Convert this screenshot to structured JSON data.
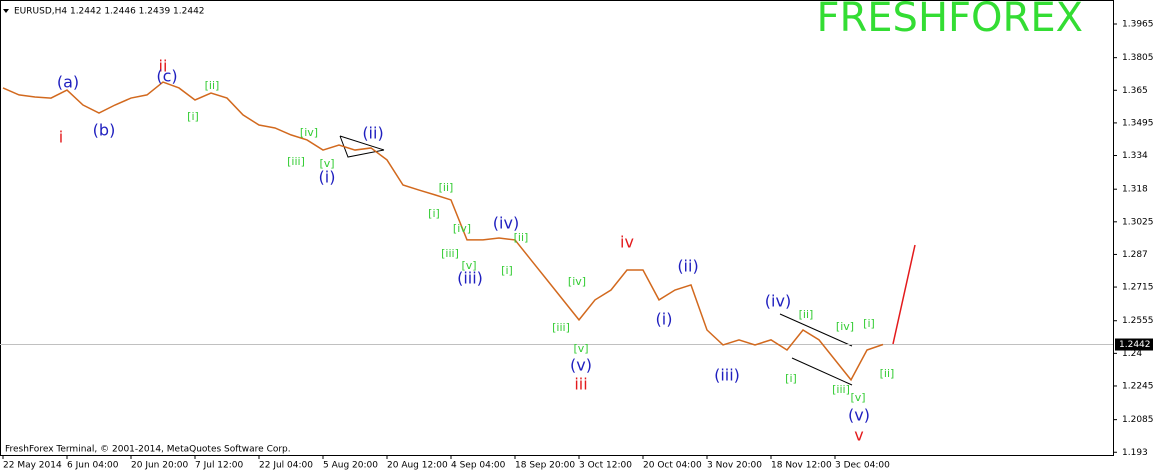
{
  "chart_data": {
    "type": "line",
    "title": "EURUSD,H4  1.2442 1.2446 1.2439 1.2442",
    "watermark": "FRESHFOREX",
    "footer": "FreshForex Terminal, © 2001-2014, MetaQuotes Software Corp.",
    "categories": [
      "22 May 2014",
      null,
      null,
      null,
      "6 Jun 04:00",
      null,
      null,
      null,
      "20 Jun 20:00",
      null,
      null,
      null,
      "7 Jul 12:00",
      null,
      null,
      null,
      "22 Jul 04:00",
      null,
      null,
      null,
      "5 Aug 20:00",
      null,
      null,
      null,
      "20 Aug 12:00",
      null,
      null,
      null,
      "4 Sep 04:00",
      null,
      null,
      null,
      "18 Sep 20:00",
      null,
      null,
      null,
      "3 Oct 12:00",
      null,
      null,
      null,
      "20 Oct 04:00",
      null,
      null,
      null,
      "3 Nov 20:00",
      null,
      null,
      null,
      "18 Nov 12:00",
      null,
      null,
      null,
      "3 Dec 04:00",
      null,
      null,
      null
    ],
    "series": [
      {
        "name": "EURUSD",
        "color": "#d2691e",
        "values": [
          1.3661,
          1.3628,
          1.3618,
          1.3613,
          1.3651,
          1.358,
          1.3542,
          1.358,
          1.3613,
          1.3628,
          1.3689,
          1.3661,
          1.3604,
          1.3637,
          1.3613,
          1.3533,
          1.3485,
          1.3471,
          1.3438,
          1.3414,
          1.3366,
          1.339,
          1.3366,
          1.3376,
          1.3319,
          1.32,
          1.3176,
          1.3153,
          1.3129,
          1.2939,
          1.2939,
          1.2948,
          1.2939,
          1.2844,
          1.2749,
          1.2654,
          1.2559,
          1.2654,
          1.2701,
          1.2796,
          1.2796,
          1.2654,
          1.2701,
          1.2725,
          1.2511,
          1.244,
          1.2464,
          1.244,
          1.2464,
          1.2416,
          1.2511,
          1.2464,
          1.2369,
          1.2274,
          1.2416,
          1.2442
        ]
      }
    ],
    "last_price": 1.2442,
    "ylim": [
      1.1917,
      1.4079
    ],
    "yticks": [
      1.3965,
      1.3805,
      1.365,
      1.3495,
      1.334,
      1.318,
      1.3025,
      1.287,
      1.2715,
      1.2555,
      1.24,
      1.2245,
      1.2085,
      1.193
    ],
    "annotations": [
      {
        "text": "i",
        "color": "#e31a1c"
      },
      {
        "text": "ii",
        "color": "#e31a1c"
      },
      {
        "text": "iv",
        "color": "#e31a1c"
      },
      {
        "text": "iii",
        "color": "#e31a1c"
      },
      {
        "text": "v",
        "color": "#e31a1c"
      },
      {
        "text": "(a)",
        "color": "#1f1fbf"
      },
      {
        "text": "(b)",
        "color": "#1f1fbf"
      },
      {
        "text": "(c)",
        "color": "#1f1fbf"
      },
      {
        "text": "(ii)",
        "color": "#1f1fbf"
      },
      {
        "text": "(i)",
        "color": "#1f1fbf"
      },
      {
        "text": "(iv)",
        "color": "#1f1fbf"
      },
      {
        "text": "(iii)",
        "color": "#1f1fbf"
      },
      {
        "text": "(v)",
        "color": "#1f1fbf"
      },
      {
        "text": "(i)",
        "color": "#1f1fbf"
      },
      {
        "text": "(ii)",
        "color": "#1f1fbf"
      },
      {
        "text": "(iii)",
        "color": "#1f1fbf"
      },
      {
        "text": "(iv)",
        "color": "#1f1fbf"
      },
      {
        "text": "(v)",
        "color": "#1f1fbf"
      },
      {
        "text": "[ii]",
        "color": "#33cc33"
      },
      {
        "text": "[i]",
        "color": "#33cc33"
      },
      {
        "text": "[iv]",
        "color": "#33cc33"
      },
      {
        "text": "[iii]",
        "color": "#33cc33"
      },
      {
        "text": "[v]",
        "color": "#33cc33"
      },
      {
        "text": "[ii]",
        "color": "#33cc33"
      },
      {
        "text": "[i]",
        "color": "#33cc33"
      },
      {
        "text": "[iv]",
        "color": "#33cc33"
      },
      {
        "text": "[iii]",
        "color": "#33cc33"
      },
      {
        "text": "[v]",
        "color": "#33cc33"
      },
      {
        "text": "[ii]",
        "color": "#33cc33"
      },
      {
        "text": "[i]",
        "color": "#33cc33"
      },
      {
        "text": "[iv]",
        "color": "#33cc33"
      },
      {
        "text": "[iii]",
        "color": "#33cc33"
      },
      {
        "text": "[v]",
        "color": "#33cc33"
      },
      {
        "text": "[ii]",
        "color": "#33cc33"
      },
      {
        "text": "[iv]",
        "color": "#33cc33"
      },
      {
        "text": "[i]",
        "color": "#33cc33"
      },
      {
        "text": "[i]",
        "color": "#33cc33"
      },
      {
        "text": "[ii]",
        "color": "#33cc33"
      },
      {
        "text": "[iii]",
        "color": "#33cc33"
      },
      {
        "text": "[v]",
        "color": "#33cc33"
      }
    ]
  }
}
